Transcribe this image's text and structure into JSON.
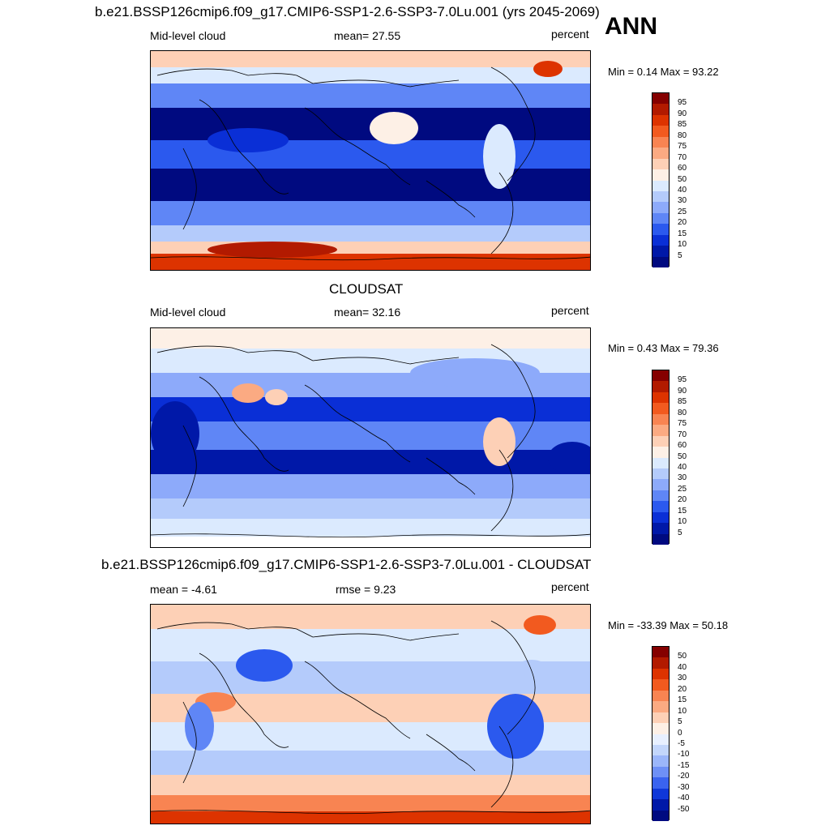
{
  "figure": {
    "season": "ANN"
  },
  "panels": [
    {
      "title": "b.e21.BSSP126cmip6.f09_g17.CMIP6-SSP1-2.6-SSP3-7.0Lu.001 (yrs 2045-2069)",
      "left_label": "Mid-level cloud",
      "center_label": "mean=  27.55",
      "units": "percent",
      "minmax": "Min =   0.14 Max =  93.22",
      "colorbar": {
        "labels": [
          "95",
          "90",
          "85",
          "80",
          "75",
          "70",
          "60",
          "50",
          "40",
          "30",
          "25",
          "20",
          "15",
          "10",
          "5"
        ],
        "colors": [
          "#850000",
          "#b21a00",
          "#dd3300",
          "#f25a1f",
          "#f88452",
          "#fbaa82",
          "#fdd0b6",
          "#fdf0e6",
          "#dbeafe",
          "#b4cbfb",
          "#8daafa",
          "#5f86f6",
          "#2b59ee",
          "#0a2fd6",
          "#0018a8",
          "#000a80"
        ]
      }
    },
    {
      "title": "CLOUDSAT",
      "left_label": "Mid-level cloud",
      "center_label": "mean=  32.16",
      "units": "percent",
      "minmax": "Min =   0.43 Max =  79.36",
      "colorbar": {
        "labels": [
          "95",
          "90",
          "85",
          "80",
          "75",
          "70",
          "60",
          "50",
          "40",
          "30",
          "25",
          "20",
          "15",
          "10",
          "5"
        ],
        "colors": [
          "#850000",
          "#b21a00",
          "#dd3300",
          "#f25a1f",
          "#f88452",
          "#fbaa82",
          "#fdd0b6",
          "#fdf0e6",
          "#dbeafe",
          "#b4cbfb",
          "#8daafa",
          "#5f86f6",
          "#2b59ee",
          "#0a2fd6",
          "#0018a8",
          "#000a80"
        ]
      }
    },
    {
      "title": "b.e21.BSSP126cmip6.f09_g17.CMIP6-SSP1-2.6-SSP3-7.0Lu.001 - CLOUDSAT",
      "left_label": "mean =  -4.61",
      "center_label": "rmse =    9.23",
      "units": "percent",
      "minmax": "Min = -33.39 Max =  50.18",
      "colorbar": {
        "labels": [
          "50",
          "40",
          "30",
          "20",
          "15",
          "10",
          "5",
          "0",
          "-5",
          "-10",
          "-15",
          "-20",
          "-30",
          "-40",
          "-50"
        ],
        "colors": [
          "#850000",
          "#b21a00",
          "#dd3300",
          "#f25a1f",
          "#f88452",
          "#fbaa82",
          "#fdd0b6",
          "#fdf0e6",
          "#e8f0ff",
          "#c3d6fb",
          "#9bb6fa",
          "#6e90f6",
          "#3a63ef",
          "#0f37d8",
          "#0018a8",
          "#000a80"
        ]
      }
    }
  ]
}
